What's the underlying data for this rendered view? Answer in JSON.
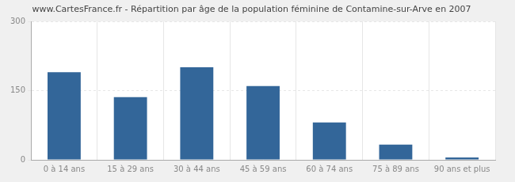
{
  "chart_data": {
    "type": "bar",
    "title": "www.CartesFrance.fr - Répartition par âge de la population féminine de Contamine-sur-Arve en 2007",
    "categories": [
      "0 à 14 ans",
      "15 à 29 ans",
      "30 à 44 ans",
      "45 à 59 ans",
      "60 à 74 ans",
      "75 à 89 ans",
      "90 ans et plus"
    ],
    "values": [
      190,
      136,
      201,
      160,
      81,
      33,
      5
    ],
    "color": "#336699",
    "ylim": [
      0,
      300
    ],
    "yticks": [
      0,
      150,
      300
    ],
    "grid": true
  }
}
